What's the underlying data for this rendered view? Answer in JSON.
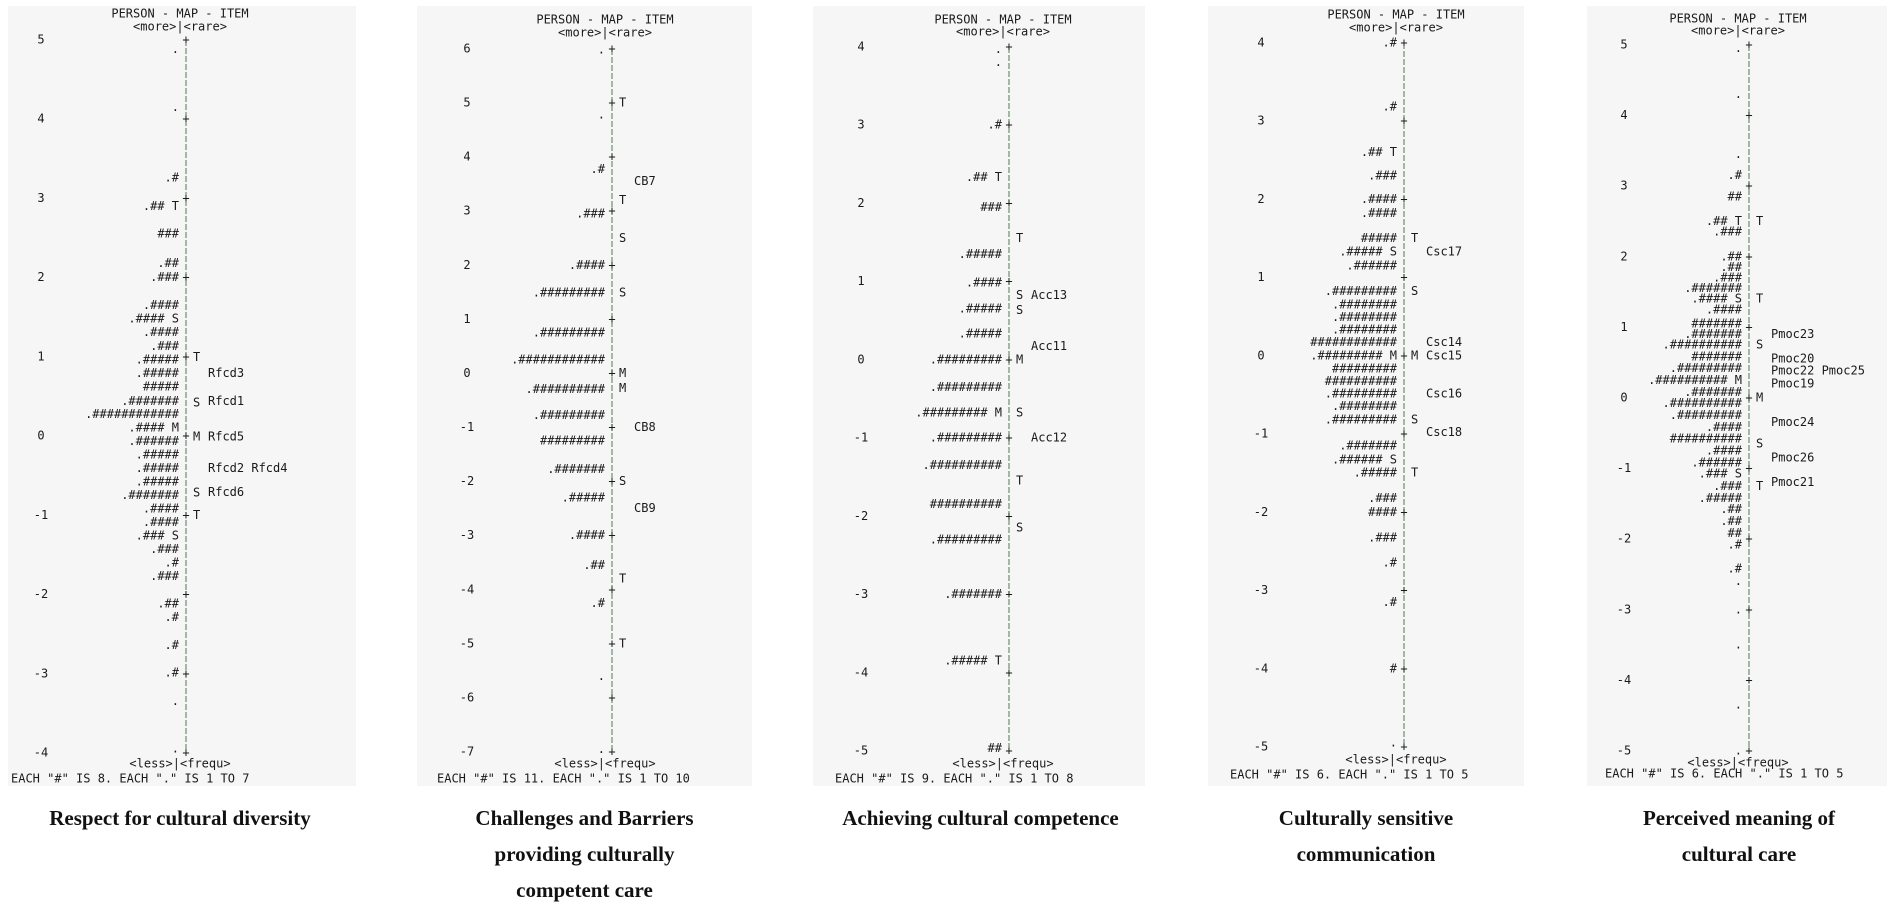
{
  "chart_data": [
    {
      "type": "wright-map",
      "header": "PERSON - MAP - ITEM",
      "top_label": "<more>|<rare>",
      "bottom_label": "<less>|<frequ>",
      "footer": "EACH \"#\" IS 8. EACH \".\" IS 1 TO 7",
      "caption": "Respect for cultural diversity",
      "ylim": [
        -4,
        5
      ],
      "tick_labels": [
        "5",
        "4",
        "3",
        "2",
        "1",
        "0",
        "-1",
        "-2",
        "-3",
        "-4"
      ],
      "tick_values": [
        5,
        4,
        3,
        2,
        1,
        0,
        -1,
        -2,
        -3,
        -4
      ],
      "persons": [
        {
          "y": 4.88,
          "text": "."
        },
        {
          "y": 4.15,
          "text": "."
        },
        {
          "y": 3.26,
          "text": ".#"
        },
        {
          "y": 2.9,
          "text": ".## T"
        },
        {
          "y": 2.55,
          "text": "###"
        },
        {
          "y": 2.18,
          "text": ".##"
        },
        {
          "y": 2.0,
          "text": ".###"
        },
        {
          "y": 1.65,
          "text": ".####"
        },
        {
          "y": 1.48,
          "text": ".#### S"
        },
        {
          "y": 1.31,
          "text": ".####"
        },
        {
          "y": 1.13,
          "text": ".###"
        },
        {
          "y": 0.96,
          "text": ".#####"
        },
        {
          "y": 0.79,
          "text": ".#####"
        },
        {
          "y": 0.62,
          "text": "#####"
        },
        {
          "y": 0.44,
          "text": ".#######"
        },
        {
          "y": 0.27,
          "text": ".############"
        },
        {
          "y": 0.1,
          "text": ".#### M"
        },
        {
          "y": -0.07,
          "text": ".######"
        },
        {
          "y": -0.24,
          "text": ".#####"
        },
        {
          "y": -0.41,
          "text": ".#####"
        },
        {
          "y": -0.58,
          "text": ".#####"
        },
        {
          "y": -0.75,
          "text": ".#######"
        },
        {
          "y": -0.92,
          "text": ".####"
        },
        {
          "y": -1.09,
          "text": ".####"
        },
        {
          "y": -1.26,
          "text": ".### S"
        },
        {
          "y": -1.43,
          "text": ".###"
        },
        {
          "y": -1.6,
          "text": ".#"
        },
        {
          "y": -1.77,
          "text": ".###"
        },
        {
          "y": -2.12,
          "text": ".##"
        },
        {
          "y": -2.29,
          "text": ".#"
        },
        {
          "y": -2.64,
          "text": ".#"
        },
        {
          "y": -2.99,
          "text": ".#"
        },
        {
          "y": -3.35,
          "text": "."
        },
        {
          "y": -3.95,
          "text": "."
        }
      ],
      "item_markers": [
        {
          "y": 0.99,
          "text": "T"
        },
        {
          "y": 0.42,
          "text": "S"
        },
        {
          "y": -0.01,
          "text": "M"
        },
        {
          "y": -0.72,
          "text": "S"
        },
        {
          "y": -1.0,
          "text": "T"
        }
      ],
      "items": [
        {
          "y": 0.79,
          "text": "Rfcd3"
        },
        {
          "y": 0.44,
          "text": "Rfcd1"
        },
        {
          "y": -0.01,
          "text": "Rfcd5"
        },
        {
          "y": -0.41,
          "text": "Rfcd2  Rfcd4"
        },
        {
          "y": -0.71,
          "text": "Rfcd6"
        }
      ]
    },
    {
      "type": "wright-map",
      "header": "PERSON - MAP - ITEM",
      "top_label": "<more>|<rare>",
      "bottom_label": "<less>|<frequ>",
      "footer": "EACH \"#\" IS 11. EACH \".\" IS 1 TO 10",
      "caption": "Challenges and Barriers providing culturally competent care",
      "ylim": [
        -7,
        6
      ],
      "tick_labels": [
        "6",
        "5",
        "4",
        "3",
        "2",
        "1",
        "0",
        "-1",
        "-2",
        "-3",
        "-4",
        "-5",
        "-6",
        "-7"
      ],
      "tick_values": [
        6,
        5,
        4,
        3,
        2,
        1,
        0,
        -1,
        -2,
        -3,
        -4,
        -5,
        -6,
        -7
      ],
      "persons": [
        {
          "y": 5.98,
          "text": "."
        },
        {
          "y": 4.78,
          "text": "."
        },
        {
          "y": 3.77,
          "text": ".#"
        },
        {
          "y": 2.95,
          "text": ".###"
        },
        {
          "y": 2.0,
          "text": ".####"
        },
        {
          "y": 1.49,
          "text": ".#########"
        },
        {
          "y": 0.75,
          "text": ".#########"
        },
        {
          "y": 0.25,
          "text": ".############"
        },
        {
          "y": -0.3,
          "text": ".##########"
        },
        {
          "y": -0.78,
          "text": ".#########"
        },
        {
          "y": -1.25,
          "text": "#########"
        },
        {
          "y": -1.78,
          "text": ".#######"
        },
        {
          "y": -2.3,
          "text": ".#####"
        },
        {
          "y": -3.0,
          "text": ".####"
        },
        {
          "y": -3.55,
          "text": ".##"
        },
        {
          "y": -4.25,
          "text": ".#"
        },
        {
          "y": -5.6,
          "text": "."
        },
        {
          "y": -6.95,
          "text": "."
        }
      ],
      "item_markers": [
        {
          "y": 5.0,
          "text": "T"
        },
        {
          "y": 3.2,
          "text": "T"
        },
        {
          "y": 2.5,
          "text": "S"
        },
        {
          "y": 1.49,
          "text": "S"
        },
        {
          "y": 0.0,
          "text": "M"
        },
        {
          "y": -0.28,
          "text": "M"
        },
        {
          "y": -2.0,
          "text": "S"
        },
        {
          "y": -3.8,
          "text": "T"
        },
        {
          "y": -5.0,
          "text": "T"
        }
      ],
      "items": [
        {
          "y": 3.55,
          "text": "CB7"
        },
        {
          "y": -1.0,
          "text": "CB8"
        },
        {
          "y": -2.5,
          "text": "CB9"
        }
      ]
    },
    {
      "type": "wright-map",
      "header": "PERSON - MAP - ITEM",
      "top_label": "<more>|<rare>",
      "bottom_label": "<less>|<frequ>",
      "footer": "EACH \"#\" IS 9. EACH \".\" IS 1 TO 8",
      "caption": "Achieving cultural competence",
      "ylim": [
        -5,
        4
      ],
      "tick_labels": [
        "4",
        "3",
        "2",
        "1",
        "0",
        "-1",
        "-2",
        "-3",
        "-4",
        "-5"
      ],
      "tick_values": [
        4,
        3,
        2,
        1,
        0,
        -1,
        -2,
        -3,
        -4,
        -5
      ],
      "persons": [
        {
          "y": 3.97,
          "text": "."
        },
        {
          "y": 3.8,
          "text": "."
        },
        {
          "y": 3.0,
          "text": ".#"
        },
        {
          "y": 2.33,
          "text": ".## T"
        },
        {
          "y": 1.95,
          "text": "###"
        },
        {
          "y": 1.35,
          "text": ".#####"
        },
        {
          "y": 0.98,
          "text": ".####"
        },
        {
          "y": 0.65,
          "text": ".#####"
        },
        {
          "y": 0.33,
          "text": ".#####"
        },
        {
          "y": 0.0,
          "text": ".#########"
        },
        {
          "y": -0.35,
          "text": ".#########"
        },
        {
          "y": -0.68,
          "text": ".######### M"
        },
        {
          "y": -1.0,
          "text": ".#########"
        },
        {
          "y": -1.35,
          "text": ".##########"
        },
        {
          "y": -1.85,
          "text": "##########"
        },
        {
          "y": -2.3,
          "text": ".#########"
        },
        {
          "y": -3.0,
          "text": ".#######"
        },
        {
          "y": -3.85,
          "text": ".##### T"
        },
        {
          "y": -4.97,
          "text": "##"
        }
      ],
      "item_markers": [
        {
          "y": 1.55,
          "text": "T"
        },
        {
          "y": 0.82,
          "text": "S"
        },
        {
          "y": 0.63,
          "text": "S"
        },
        {
          "y": 0.0,
          "text": "M"
        },
        {
          "y": -0.68,
          "text": "S"
        },
        {
          "y": -1.55,
          "text": "T"
        },
        {
          "y": -2.15,
          "text": "S"
        }
      ],
      "items": [
        {
          "y": 0.82,
          "text": "Acc13"
        },
        {
          "y": 0.17,
          "text": "Acc11"
        },
        {
          "y": -1.0,
          "text": "Acc12"
        }
      ]
    },
    {
      "type": "wright-map",
      "header": "PERSON - MAP - ITEM",
      "top_label": "<more>|<rare>",
      "bottom_label": "<less>|<frequ>",
      "footer": "EACH \"#\" IS 6. EACH \".\" IS 1 TO 5",
      "caption": "Culturally sensitive communication",
      "ylim": [
        -5,
        4
      ],
      "tick_labels": [
        "4",
        "3",
        "2",
        "1",
        "0",
        "-1",
        "-2",
        "-3",
        "-4",
        "-5"
      ],
      "tick_values": [
        4,
        3,
        2,
        1,
        0,
        -1,
        -2,
        -3,
        -4,
        -5
      ],
      "persons": [
        {
          "y": 4.0,
          "text": ".#"
        },
        {
          "y": 3.18,
          "text": ".#"
        },
        {
          "y": 2.6,
          "text": ".## T"
        },
        {
          "y": 2.3,
          "text": ".###"
        },
        {
          "y": 2.0,
          "text": ".####"
        },
        {
          "y": 1.82,
          "text": ".####"
        },
        {
          "y": 1.5,
          "text": "#####"
        },
        {
          "y": 1.33,
          "text": ".##### S"
        },
        {
          "y": 1.15,
          "text": ".######"
        },
        {
          "y": 0.82,
          "text": ".#########"
        },
        {
          "y": 0.65,
          "text": ".########"
        },
        {
          "y": 0.49,
          "text": ".########"
        },
        {
          "y": 0.33,
          "text": ".########"
        },
        {
          "y": 0.17,
          "text": "############"
        },
        {
          "y": 0.0,
          "text": ".######### M"
        },
        {
          "y": -0.17,
          "text": "#########"
        },
        {
          "y": -0.33,
          "text": "##########"
        },
        {
          "y": -0.49,
          "text": ".#########"
        },
        {
          "y": -0.65,
          "text": ".########"
        },
        {
          "y": -0.82,
          "text": ".#########"
        },
        {
          "y": -1.15,
          "text": ".#######"
        },
        {
          "y": -1.33,
          "text": ".###### S"
        },
        {
          "y": -1.5,
          "text": ".#####"
        },
        {
          "y": -1.82,
          "text": ".###"
        },
        {
          "y": -2.0,
          "text": "####"
        },
        {
          "y": -2.33,
          "text": ".###"
        },
        {
          "y": -2.65,
          "text": ".#"
        },
        {
          "y": -3.15,
          "text": ".#"
        },
        {
          "y": -4.0,
          "text": "#"
        },
        {
          "y": -4.95,
          "text": "."
        }
      ],
      "item_markers": [
        {
          "y": 1.5,
          "text": "T"
        },
        {
          "y": 0.82,
          "text": "S"
        },
        {
          "y": 0.0,
          "text": "M"
        },
        {
          "y": -0.82,
          "text": "S"
        },
        {
          "y": -1.5,
          "text": "T"
        }
      ],
      "items": [
        {
          "y": 1.33,
          "text": "Csc17"
        },
        {
          "y": 0.17,
          "text": "Csc14"
        },
        {
          "y": 0.0,
          "text": "Csc15"
        },
        {
          "y": -0.49,
          "text": "Csc16"
        },
        {
          "y": -0.98,
          "text": "Csc18"
        }
      ]
    },
    {
      "type": "wright-map",
      "header": "PERSON - MAP - ITEM",
      "top_label": "<more>|<rare>",
      "bottom_label": "<less>|<frequ>",
      "footer": "EACH \"#\" IS 6. EACH \".\" IS 1 TO 5",
      "caption": "Perceived meaning of cultural care",
      "ylim": [
        -5,
        5
      ],
      "tick_labels": [
        "5",
        "4",
        "3",
        "2",
        "1",
        "0",
        "-1",
        "-2",
        "-3",
        "-4",
        "-5"
      ],
      "tick_values": [
        5,
        4,
        3,
        2,
        1,
        0,
        -1,
        -2,
        -3,
        -4,
        -5
      ],
      "persons": [
        {
          "y": 4.95,
          "text": "."
        },
        {
          "y": 4.3,
          "text": "."
        },
        {
          "y": 3.45,
          "text": "."
        },
        {
          "y": 3.15,
          "text": ".#"
        },
        {
          "y": 2.85,
          "text": "##"
        },
        {
          "y": 2.5,
          "text": ".## T"
        },
        {
          "y": 2.35,
          "text": ".###"
        },
        {
          "y": 2.0,
          "text": ".##"
        },
        {
          "y": 1.85,
          "text": ".##"
        },
        {
          "y": 1.7,
          "text": ".###"
        },
        {
          "y": 1.55,
          "text": ".#######"
        },
        {
          "y": 1.4,
          "text": ".#### S"
        },
        {
          "y": 1.25,
          "text": ".####"
        },
        {
          "y": 1.05,
          "text": "#######"
        },
        {
          "y": 0.9,
          "text": ".#######"
        },
        {
          "y": 0.75,
          "text": ".##########"
        },
        {
          "y": 0.58,
          "text": "#######"
        },
        {
          "y": 0.42,
          "text": ".#########"
        },
        {
          "y": 0.25,
          "text": ".########## M"
        },
        {
          "y": 0.08,
          "text": ".#######"
        },
        {
          "y": -0.08,
          "text": ".##########"
        },
        {
          "y": -0.25,
          "text": ".#########"
        },
        {
          "y": -0.42,
          "text": ".####"
        },
        {
          "y": -0.58,
          "text": "##########"
        },
        {
          "y": -0.75,
          "text": ".####"
        },
        {
          "y": -0.92,
          "text": ".######"
        },
        {
          "y": -1.08,
          "text": ".### S"
        },
        {
          "y": -1.25,
          "text": ".###"
        },
        {
          "y": -1.42,
          "text": ".#####"
        },
        {
          "y": -1.58,
          "text": ".##"
        },
        {
          "y": -1.75,
          "text": ".##"
        },
        {
          "y": -1.92,
          "text": "##"
        },
        {
          "y": -2.08,
          "text": ".#"
        },
        {
          "y": -2.42,
          "text": ".#"
        },
        {
          "y": -2.6,
          "text": "."
        },
        {
          "y": -3.0,
          "text": "."
        },
        {
          "y": -3.5,
          "text": "."
        },
        {
          "y": -4.35,
          "text": "."
        },
        {
          "y": -5.0,
          "text": "."
        }
      ],
      "item_markers": [
        {
          "y": 2.5,
          "text": "T"
        },
        {
          "y": 1.4,
          "text": "T"
        },
        {
          "y": 0.75,
          "text": "S"
        },
        {
          "y": 0.0,
          "text": "M"
        },
        {
          "y": -0.65,
          "text": "S"
        },
        {
          "y": -1.25,
          "text": "T"
        }
      ],
      "items": [
        {
          "y": 0.9,
          "text": "Pmoc23"
        },
        {
          "y": 0.55,
          "text": "Pmoc20"
        },
        {
          "y": 0.38,
          "text": "Pmoc22   Pmoc25"
        },
        {
          "y": 0.2,
          "text": "Pmoc19"
        },
        {
          "y": -0.35,
          "text": "Pmoc24"
        },
        {
          "y": -0.85,
          "text": "Pmoc26"
        },
        {
          "y": -1.2,
          "text": "Pmoc21"
        }
      ]
    }
  ]
}
